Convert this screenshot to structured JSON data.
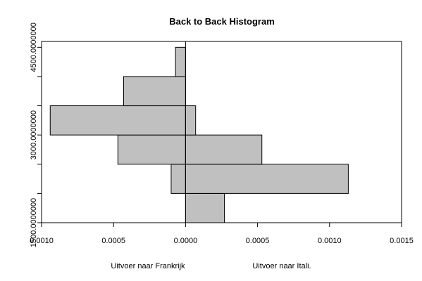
{
  "chart_data": {
    "type": "bar",
    "title": "Back to Back Histogram",
    "orientation": "horizontal-back-to-back",
    "bar_fill": "#c0c0c0",
    "bar_stroke": "#000000",
    "bins": [
      {
        "from": 1500,
        "to": 2000,
        "left": 0.0,
        "right": 0.00027
      },
      {
        "from": 2000,
        "to": 2500,
        "left": 0.0001,
        "right": 0.00113
      },
      {
        "from": 2500,
        "to": 3000,
        "left": 0.00047,
        "right": 0.00053
      },
      {
        "from": 3000,
        "to": 3500,
        "left": 0.00094,
        "right": 7e-05
      },
      {
        "from": 3500,
        "to": 4000,
        "left": 0.00043,
        "right": 0.0
      },
      {
        "from": 4000,
        "to": 4500,
        "left": 7e-05,
        "right": 0.0
      }
    ],
    "xlim": [
      -0.001,
      0.0015
    ],
    "ylim": [
      1500,
      4600
    ],
    "x_ticks": [
      {
        "value": -0.001,
        "label": "0.0010"
      },
      {
        "value": -0.0005,
        "label": "0.0005"
      },
      {
        "value": 0.0,
        "label": "0.0000"
      },
      {
        "value": 0.0005,
        "label": "0.0005"
      },
      {
        "value": 0.001,
        "label": "0.0010"
      },
      {
        "value": 0.0015,
        "label": "0.0015"
      }
    ],
    "y_ticks": [
      {
        "value": 1500,
        "label": "1500.0000000"
      },
      {
        "value": 2000,
        "label": ""
      },
      {
        "value": 2500,
        "label": ""
      },
      {
        "value": 3000,
        "label": "3000.0000000"
      },
      {
        "value": 3500,
        "label": ""
      },
      {
        "value": 4000,
        "label": ""
      },
      {
        "value": 4500,
        "label": "4500.0000000"
      }
    ],
    "left_label": "Uitvoer naar Frankrijk",
    "right_label": "Uitvoer naar Itali.",
    "grid": false
  }
}
